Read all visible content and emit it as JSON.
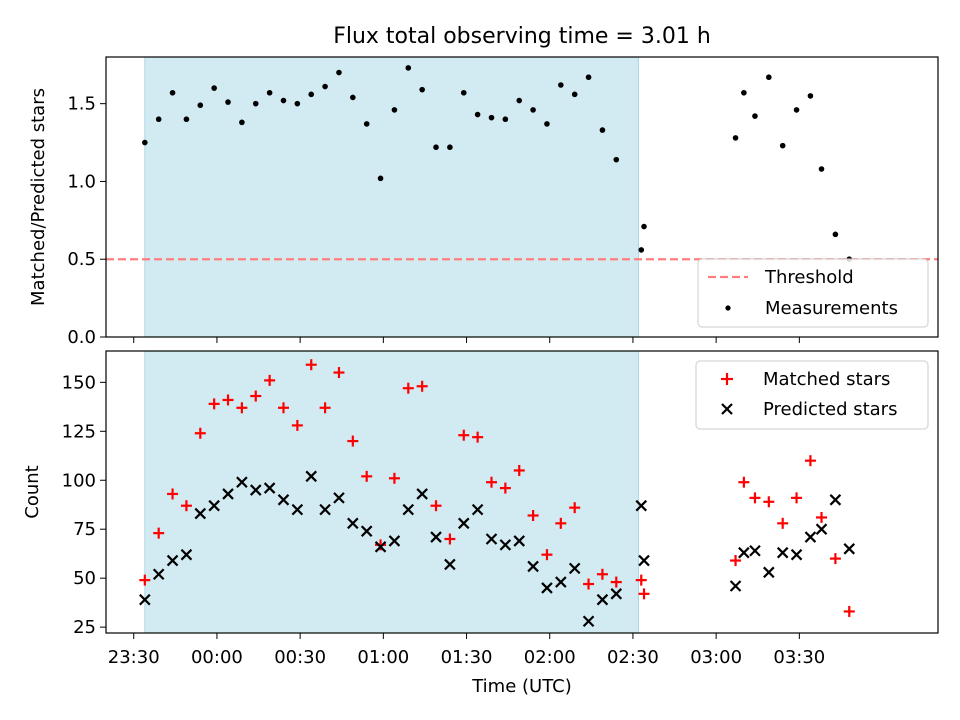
{
  "figure": {
    "title": "Flux total observing time = 3.01 h"
  },
  "colors": {
    "shade": "#add8e6",
    "threshold": "#ff7f7f",
    "measurement": "#000000",
    "matched": "#ff0000",
    "predicted": "#000000"
  },
  "chart_data": [
    {
      "type": "scatter",
      "ylabel": "Matched/Predicted stars",
      "ylim": [
        0,
        1.8
      ],
      "yticks": [
        0.0,
        0.5,
        1.0,
        1.5
      ],
      "ytick_labels": [
        "0.0",
        "0.5",
        "1.0",
        "1.5"
      ],
      "xlim_minutes": [
        -40,
        260
      ],
      "shaded_range_minutes": [
        -26,
        152
      ],
      "threshold": 0.5,
      "legend": {
        "position": "lower-right",
        "entries": [
          {
            "label": "Threshold",
            "series": "threshold"
          },
          {
            "label": "Measurements",
            "series": "measurements"
          }
        ]
      },
      "series": [
        {
          "name": "Measurements",
          "x": [
            "23:34",
            "23:39",
            "23:44",
            "23:49",
            "23:54",
            "23:59",
            "00:04",
            "00:09",
            "00:14",
            "00:19",
            "00:24",
            "00:29",
            "00:34",
            "00:39",
            "00:44",
            "00:49",
            "00:54",
            "00:59",
            "01:04",
            "01:09",
            "01:14",
            "01:19",
            "01:24",
            "01:29",
            "01:34",
            "01:39",
            "01:44",
            "01:49",
            "01:54",
            "01:59",
            "02:04",
            "02:09",
            "02:14",
            "02:19",
            "02:24",
            "02:33",
            "02:34",
            "03:07",
            "03:10",
            "03:14",
            "03:19",
            "03:24",
            "03:29",
            "03:34",
            "03:38",
            "03:43",
            "03:48"
          ],
          "values": [
            1.25,
            1.4,
            1.57,
            1.4,
            1.49,
            1.6,
            1.51,
            1.38,
            1.5,
            1.57,
            1.52,
            1.5,
            1.56,
            1.61,
            1.7,
            1.54,
            1.37,
            1.02,
            1.46,
            1.73,
            1.59,
            1.22,
            1.22,
            1.57,
            1.43,
            1.41,
            1.4,
            1.52,
            1.46,
            1.37,
            1.62,
            1.56,
            1.67,
            1.33,
            1.14,
            0.56,
            0.71,
            1.28,
            1.57,
            1.42,
            1.67,
            1.23,
            1.46,
            1.55,
            1.08,
            0.66,
            0.5
          ]
        }
      ]
    },
    {
      "type": "scatter",
      "xlabel": "Time (UTC)",
      "ylabel": "Count",
      "ylim": [
        22,
        166
      ],
      "yticks": [
        25,
        50,
        75,
        100,
        125,
        150
      ],
      "ytick_labels": [
        "25",
        "50",
        "75",
        "100",
        "125",
        "150"
      ],
      "xlim_minutes": [
        -40,
        260
      ],
      "xticks_minutes": [
        -30,
        0,
        30,
        60,
        90,
        120,
        150,
        180,
        210
      ],
      "xtick_labels": [
        "23:30",
        "00:00",
        "00:30",
        "01:00",
        "01:30",
        "02:00",
        "02:30",
        "03:00",
        "03:30"
      ],
      "shaded_range_minutes": [
        -26,
        152
      ],
      "legend": {
        "position": "upper-right",
        "entries": [
          {
            "label": "Matched stars",
            "series": "matched"
          },
          {
            "label": "Predicted stars",
            "series": "predicted"
          }
        ]
      },
      "series": [
        {
          "name": "Matched stars",
          "x": [
            "23:34",
            "23:39",
            "23:44",
            "23:49",
            "23:54",
            "23:59",
            "00:04",
            "00:09",
            "00:14",
            "00:19",
            "00:24",
            "00:29",
            "00:34",
            "00:39",
            "00:44",
            "00:49",
            "00:54",
            "00:59",
            "01:04",
            "01:09",
            "01:14",
            "01:19",
            "01:24",
            "01:29",
            "01:34",
            "01:39",
            "01:44",
            "01:49",
            "01:54",
            "01:59",
            "02:04",
            "02:09",
            "02:14",
            "02:19",
            "02:24",
            "02:33",
            "02:34",
            "03:07",
            "03:10",
            "03:14",
            "03:19",
            "03:24",
            "03:29",
            "03:34",
            "03:38",
            "03:43",
            "03:48"
          ],
          "values": [
            49,
            73,
            93,
            87,
            124,
            139,
            141,
            137,
            143,
            151,
            137,
            128,
            159,
            137,
            155,
            120,
            102,
            67,
            101,
            147,
            148,
            87,
            70,
            123,
            122,
            99,
            96,
            105,
            82,
            62,
            78,
            86,
            47,
            52,
            48,
            49,
            42,
            59,
            99,
            91,
            89,
            78,
            91,
            110,
            81,
            60,
            33
          ]
        },
        {
          "name": "Predicted stars",
          "x": [
            "23:34",
            "23:39",
            "23:44",
            "23:49",
            "23:54",
            "23:59",
            "00:04",
            "00:09",
            "00:14",
            "00:19",
            "00:24",
            "00:29",
            "00:34",
            "00:39",
            "00:44",
            "00:49",
            "00:54",
            "00:59",
            "01:04",
            "01:09",
            "01:14",
            "01:19",
            "01:24",
            "01:29",
            "01:34",
            "01:39",
            "01:44",
            "01:49",
            "01:54",
            "01:59",
            "02:04",
            "02:09",
            "02:14",
            "02:19",
            "02:24",
            "02:33",
            "02:34",
            "03:07",
            "03:10",
            "03:14",
            "03:19",
            "03:24",
            "03:29",
            "03:34",
            "03:38",
            "03:43",
            "03:48"
          ],
          "values": [
            39,
            52,
            59,
            62,
            83,
            87,
            93,
            99,
            95,
            96,
            90,
            85,
            102,
            85,
            91,
            78,
            74,
            66,
            69,
            85,
            93,
            71,
            57,
            78,
            85,
            70,
            67,
            69,
            56,
            45,
            48,
            55,
            28,
            39,
            42,
            87,
            59,
            46,
            63,
            64,
            53,
            63,
            62,
            71,
            75,
            90,
            65
          ]
        }
      ]
    }
  ]
}
